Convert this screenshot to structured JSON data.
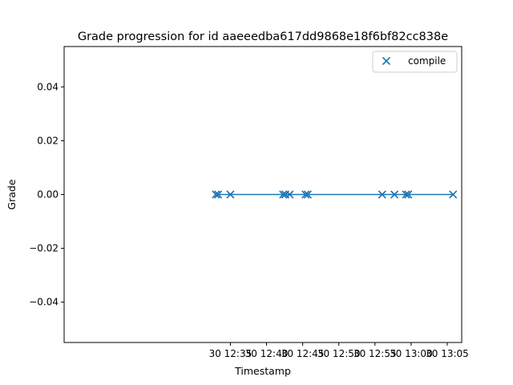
{
  "chart_data": {
    "type": "scatter",
    "title": "Grade progression for id aaeeedba617dd9868e18f6bf82cc838e",
    "xlabel": "Timestamp",
    "ylabel": "Grade",
    "x_unit": "minutes past 12:00 on day 30",
    "xlim": [
      12.0,
      67.0
    ],
    "ylim": [
      -0.055,
      0.055
    ],
    "grid": false,
    "legend_position": "top-right",
    "x_ticks": [
      {
        "value": 35,
        "label": "30 12:35"
      },
      {
        "value": 40,
        "label": "30 12:40"
      },
      {
        "value": 45,
        "label": "30 12:45"
      },
      {
        "value": 50,
        "label": "30 12:50"
      },
      {
        "value": 55,
        "label": "30 12:55"
      },
      {
        "value": 60,
        "label": "30 13:00"
      },
      {
        "value": 65,
        "label": "30 13:05"
      }
    ],
    "y_ticks": [
      {
        "value": 0.04,
        "label": "0.04"
      },
      {
        "value": 0.02,
        "label": "0.02"
      },
      {
        "value": 0.0,
        "label": "0.00"
      },
      {
        "value": -0.02,
        "label": "−0.02"
      },
      {
        "value": -0.04,
        "label": "−0.04"
      }
    ],
    "series": [
      {
        "name": "compile",
        "marker": "x",
        "color": "#1f77b4",
        "x": [
          33.0,
          33.3,
          35.0,
          42.3,
          42.6,
          43.2,
          45.4,
          45.7,
          56.0,
          57.7,
          59.3,
          59.6,
          65.8
        ],
        "y": [
          0,
          0,
          0,
          0,
          0,
          0,
          0,
          0,
          0,
          0,
          0,
          0,
          0
        ]
      }
    ]
  }
}
